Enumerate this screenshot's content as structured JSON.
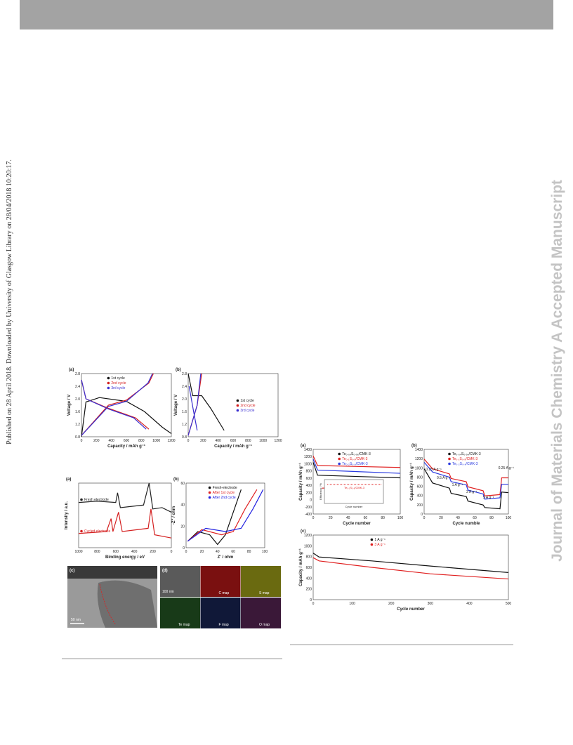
{
  "sidebar": "Published on 28 April 2018. Downloaded by University of Glasgow Library on 28/04/2018 10:20:17.",
  "watermark": "Journal of Materials Chemistry A Accepted Manuscript",
  "panels": {
    "v_a": {
      "label": "(a)",
      "xlabel": "Capacity / mAh g⁻¹",
      "ylabel": "Voltage / V",
      "xticks": [
        "0",
        "200",
        "400",
        "600",
        "800",
        "1000",
        "1200"
      ],
      "yticks": [
        "0.8",
        "1.2",
        "1.6",
        "2.0",
        "2.4",
        "2.8"
      ],
      "legend": [
        {
          "name": "1st cycle",
          "color": "#111111"
        },
        {
          "name": "2nd cycle",
          "color": "#d42020"
        },
        {
          "name": "3rd cycle",
          "color": "#3a2fd0"
        }
      ]
    },
    "v_b": {
      "label": "(b)",
      "xlabel": "Capacity / mAh g⁻¹",
      "ylabel": "Voltage / V",
      "xticks": [
        "0",
        "200",
        "400",
        "600",
        "800",
        "1000",
        "1200"
      ],
      "yticks": [
        "0.8",
        "1.2",
        "1.6",
        "2.0",
        "2.4",
        "2.8"
      ],
      "legend": [
        {
          "name": "1st cycle",
          "color": "#111111"
        },
        {
          "name": "2nd cycle",
          "color": "#d42020"
        },
        {
          "name": "3rd cycle",
          "color": "#3a2fd0"
        }
      ]
    },
    "x_a": {
      "label": "(a)",
      "xlabel": "Binding energy / eV",
      "ylabel": "Intensity / a.u.",
      "xticks": [
        "1000",
        "800",
        "600",
        "400",
        "200",
        "0"
      ],
      "yticks": [],
      "legend": [
        {
          "name": "Fresh electrode",
          "color": "#222222"
        },
        {
          "name": "Cycled electrode",
          "color": "#d42020"
        }
      ]
    },
    "x_b": {
      "label": "(b)",
      "xlabel": "Z' / ohm",
      "ylabel": "-Z'' / ohm",
      "xticks": [
        "0",
        "20",
        "40",
        "60",
        "80",
        "100"
      ],
      "yticks": [
        "0",
        "20",
        "40",
        "60"
      ],
      "legend": [
        {
          "name": "Fresh-electrode",
          "color": "#111111"
        },
        {
          "name": "After 1st cycle",
          "color": "#e02020"
        },
        {
          "name": "After 2nd cycle",
          "color": "#2020e0"
        }
      ]
    },
    "r_a": {
      "label": "(a)",
      "xlabel": "Cycle number",
      "ylabel": "Capacity / mAh g⁻¹",
      "xticks": [
        "0",
        "20",
        "40",
        "60",
        "80",
        "100"
      ],
      "yticks": [
        "-400",
        "-200",
        "0",
        "200",
        "400",
        "600",
        "800",
        "1000",
        "1200",
        "1400"
      ],
      "legend": [
        {
          "name": "Te₀.₀₄S₀.₉₆/CMK-3",
          "color": "#111111"
        },
        {
          "name": "Te₀.₁S₀.₉/CMK-3",
          "color": "#e02020"
        },
        {
          "name": "Te₀.₂S₀.₈/CMK-3",
          "color": "#2a3ae0"
        }
      ]
    },
    "r_b": {
      "label": "(b)",
      "xlabel": "Cycle numble",
      "ylabel": "Capacity / mAh g⁻¹",
      "xticks": [
        "0",
        "20",
        "40",
        "60",
        "80",
        "100"
      ],
      "yticks": [
        "0",
        "200",
        "400",
        "600",
        "800",
        "1000",
        "1200",
        "1400"
      ],
      "legend": [
        {
          "name": "Te₀.₀₄S₀.₉₆/CMK-3",
          "color": "#111111"
        },
        {
          "name": "Te₀.₁S₀.₉/CMK-3",
          "color": "#e02020"
        },
        {
          "name": "Te₀.₂S₀.₈/CMK-3",
          "color": "#2a3ae0"
        }
      ]
    },
    "r_c": {
      "label": "(c)",
      "xlabel": "Cycle number",
      "ylabel": "Capacity / mAh g⁻¹",
      "xticks": [
        "0",
        "100",
        "200",
        "300",
        "400",
        "500"
      ],
      "yticks": [
        "0",
        "200",
        "400",
        "600",
        "800",
        "1000",
        "1200"
      ],
      "legend": [
        {
          "name": "1 A g⁻¹",
          "color": "#111111"
        },
        {
          "name": "3 A g⁻¹",
          "color": "#e02020"
        }
      ]
    }
  },
  "rate_labels": [
    "0.25 A g⁻¹",
    "0.5 A g⁻¹",
    "1 A g⁻¹",
    "3 A g⁻¹",
    "5 A g⁻¹",
    "0.25 A g⁻¹"
  ],
  "inset": {
    "ylabel": "Efficiency / %",
    "xlabel": "Cycle number",
    "legend": "Te₀.₁S₀.₉/CMK-3"
  },
  "tem": {
    "label": "(c)",
    "scale": "50 nm"
  },
  "maps": {
    "label": "(d)",
    "scale": "100 nm",
    "names": [
      "C map",
      "S map",
      "Te map",
      "F map",
      "O map"
    ]
  }
}
